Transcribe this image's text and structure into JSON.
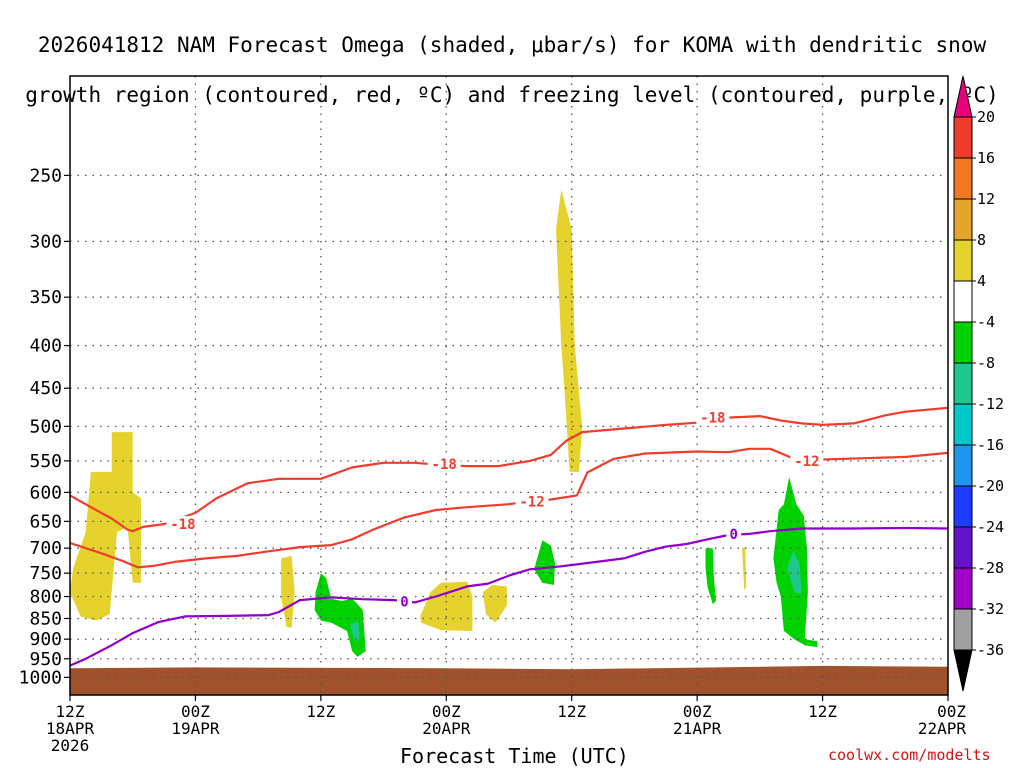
{
  "title": {
    "line1": "2026041812 NAM Forecast Omega (shaded, μbar/s) for KOMA with dendritic snow",
    "line2": "growth region (contoured, red, ºC) and freezing level (contoured, purple, ºC)"
  },
  "xlabel": "Forecast Time (UTC)",
  "credit": "coolwx.com/modelts",
  "chart_data": {
    "type": "time-height cross-section",
    "station": "KOMA",
    "run": "2026041812",
    "model": "NAM",
    "x_range_hours": [
      0,
      84
    ],
    "y_range_hpa": [
      1050,
      190
    ],
    "y_scale": "log-pressure",
    "y_ticks": [
      250,
      300,
      350,
      400,
      450,
      500,
      550,
      600,
      650,
      700,
      750,
      800,
      850,
      900,
      950,
      1000
    ],
    "x_ticks": [
      {
        "hour": 0,
        "line1": "12Z",
        "line2": "18APR",
        "line3": "2026"
      },
      {
        "hour": 12,
        "line1": "00Z",
        "line2": "19APR",
        "line3": ""
      },
      {
        "hour": 24,
        "line1": "12Z",
        "line2": "",
        "line3": ""
      },
      {
        "hour": 36,
        "line1": "00Z",
        "line2": "20APR",
        "line3": ""
      },
      {
        "hour": 48,
        "line1": "12Z",
        "line2": "",
        "line3": ""
      },
      {
        "hour": 60,
        "line1": "00Z",
        "line2": "21APR",
        "line3": ""
      },
      {
        "hour": 72,
        "line1": "12Z",
        "line2": "",
        "line3": ""
      },
      {
        "hour": 84,
        "line1": "00Z",
        "line2": "22APR",
        "line3": ""
      }
    ],
    "colorbar": {
      "units": "μbar/s",
      "bins": [
        {
          "from": 20,
          "to": 24,
          "color": "#e6007a"
        },
        {
          "from": 16,
          "to": 20,
          "color": "#f03c2d"
        },
        {
          "from": 12,
          "to": 16,
          "color": "#f0781e"
        },
        {
          "from": 8,
          "to": 12,
          "color": "#e6a42d"
        },
        {
          "from": 4,
          "to": 8,
          "color": "#e6d22d"
        },
        {
          "from": -4,
          "to": 4,
          "color": "#ffffff"
        },
        {
          "from": -8,
          "to": -4,
          "color": "#00d200"
        },
        {
          "from": -12,
          "to": -8,
          "color": "#1ec88c"
        },
        {
          "from": -16,
          "to": -12,
          "color": "#00c8c8"
        },
        {
          "from": -20,
          "to": -16,
          "color": "#1e96f0"
        },
        {
          "from": -24,
          "to": -20,
          "color": "#1e3cff"
        },
        {
          "from": -28,
          "to": -24,
          "color": "#6414c8"
        },
        {
          "from": -32,
          "to": -28,
          "color": "#a000c8"
        },
        {
          "from": -36,
          "to": -32,
          "color": "#a0a0a0"
        },
        {
          "from": -40,
          "to": -36,
          "color": "#000000"
        }
      ],
      "tick_labels": [
        "20",
        "16",
        "12",
        "8",
        "4",
        "-4",
        "-8",
        "-12",
        "-16",
        "-20",
        "-24",
        "-28",
        "-32",
        "-36"
      ]
    },
    "ground": {
      "color": "#a0522d",
      "pressure_top_hpa": [
        [
          0,
          975
        ],
        [
          12,
          973
        ],
        [
          36,
          975
        ],
        [
          48,
          978
        ],
        [
          72,
          969
        ],
        [
          84,
          971
        ]
      ]
    },
    "contours": [
      {
        "name": "-18 ºC",
        "label": "-18",
        "color": "#f03c2d",
        "points": [
          [
            0,
            605
          ],
          [
            2,
            625
          ],
          [
            4,
            645
          ],
          [
            5.5,
            665
          ],
          [
            6,
            668
          ],
          [
            7,
            660
          ],
          [
            9,
            655
          ],
          [
            12,
            635
          ],
          [
            14,
            610
          ],
          [
            17,
            585
          ],
          [
            20,
            578
          ],
          [
            24,
            578
          ],
          [
            27,
            560
          ],
          [
            30,
            553
          ],
          [
            33,
            553
          ],
          [
            36,
            557
          ],
          [
            38,
            558
          ],
          [
            41,
            558
          ],
          [
            44,
            550
          ],
          [
            46,
            541
          ],
          [
            47.5,
            520
          ],
          [
            49,
            508
          ],
          [
            53,
            503
          ],
          [
            57,
            498
          ],
          [
            60,
            495
          ],
          [
            62,
            490
          ],
          [
            63,
            488
          ],
          [
            66,
            486
          ],
          [
            68,
            492
          ],
          [
            70,
            496
          ],
          [
            72,
            498
          ],
          [
            75,
            496
          ],
          [
            78,
            485
          ],
          [
            80,
            480
          ],
          [
            84,
            475
          ]
        ],
        "label_positions": [
          [
            10.8,
            655
          ],
          [
            35.8,
            555
          ],
          [
            61.5,
            488
          ]
        ]
      },
      {
        "name": "-12 ºC",
        "label": "-12",
        "color": "#f03c2d",
        "points": [
          [
            0,
            690
          ],
          [
            3,
            710
          ],
          [
            5,
            725
          ],
          [
            6.5,
            738
          ],
          [
            8,
            735
          ],
          [
            10,
            727
          ],
          [
            13,
            720
          ],
          [
            16,
            715
          ],
          [
            19,
            706
          ],
          [
            22,
            698
          ],
          [
            25,
            694
          ],
          [
            27,
            683
          ],
          [
            29,
            665
          ],
          [
            32,
            643
          ],
          [
            35,
            630
          ],
          [
            38,
            625
          ],
          [
            42,
            620
          ],
          [
            44,
            615
          ],
          [
            46,
            612
          ],
          [
            48.5,
            605
          ],
          [
            49.5,
            568
          ],
          [
            52,
            547
          ],
          [
            55,
            539
          ],
          [
            60,
            536
          ],
          [
            63,
            537
          ],
          [
            65,
            532
          ],
          [
            67,
            532
          ],
          [
            69,
            545
          ],
          [
            72,
            548
          ],
          [
            76,
            546
          ],
          [
            80,
            544
          ],
          [
            84,
            538
          ]
        ],
        "label_positions": [
          [
            44.2,
            615
          ],
          [
            70.5,
            550
          ]
        ]
      },
      {
        "name": "0 ºC",
        "label": "0",
        "color": "#9000c8",
        "points": [
          [
            0,
            968
          ],
          [
            1.5,
            950
          ],
          [
            4,
            915
          ],
          [
            6,
            885
          ],
          [
            8.5,
            858
          ],
          [
            11,
            845
          ],
          [
            15,
            844
          ],
          [
            19,
            842
          ],
          [
            20,
            835
          ],
          [
            22,
            808
          ],
          [
            25,
            802
          ],
          [
            28,
            806
          ],
          [
            31,
            808
          ],
          [
            33,
            813
          ],
          [
            35,
            800
          ],
          [
            38,
            778
          ],
          [
            40,
            772
          ],
          [
            42,
            755
          ],
          [
            44,
            742
          ],
          [
            47,
            736
          ],
          [
            50,
            728
          ],
          [
            53,
            720
          ],
          [
            55,
            707
          ],
          [
            57,
            697
          ],
          [
            59,
            692
          ],
          [
            61,
            683
          ],
          [
            63,
            675
          ],
          [
            65,
            673
          ],
          [
            67,
            668
          ],
          [
            70,
            663
          ],
          [
            75,
            663
          ],
          [
            80,
            662
          ],
          [
            84,
            663
          ]
        ],
        "label_positions": [
          [
            32,
            811
          ],
          [
            63.5,
            673
          ]
        ]
      }
    ],
    "shaded_regions": [
      {
        "value_bin": "4 to 8",
        "color": "#e6d22d",
        "name": "yellow-ascent-1",
        "polygon": [
          [
            0,
            790
          ],
          [
            0.3,
            740
          ],
          [
            1.5,
            670
          ],
          [
            2,
            567
          ],
          [
            4,
            567
          ],
          [
            4,
            508
          ],
          [
            6,
            508
          ],
          [
            6,
            600
          ],
          [
            6.8,
            610
          ],
          [
            6.8,
            770
          ],
          [
            6,
            770
          ],
          [
            5.5,
            660
          ],
          [
            4.5,
            670
          ],
          [
            3.8,
            840
          ],
          [
            2.5,
            855
          ],
          [
            1,
            845
          ]
        ]
      },
      {
        "value_bin": "4 to 8",
        "color": "#e6d22d",
        "name": "yellow-ascent-2",
        "polygon": [
          [
            20.2,
            720
          ],
          [
            21.2,
            715
          ],
          [
            21.5,
            790
          ],
          [
            21.2,
            872
          ],
          [
            20.7,
            870
          ],
          [
            20.2,
            800
          ]
        ]
      },
      {
        "value_bin": "4 to 8",
        "color": "#e6d22d",
        "name": "yellow-ascent-3",
        "polygon": [
          [
            33.5,
            845
          ],
          [
            34.5,
            790
          ],
          [
            35.5,
            770
          ],
          [
            38,
            768
          ],
          [
            38.5,
            800
          ],
          [
            38.5,
            880
          ],
          [
            35.5,
            878
          ],
          [
            33.6,
            860
          ]
        ]
      },
      {
        "value_bin": "4 to 8",
        "color": "#e6d22d",
        "name": "yellow-ascent-4",
        "polygon": [
          [
            39.5,
            790
          ],
          [
            40.4,
            775
          ],
          [
            41.8,
            778
          ],
          [
            41.8,
            820
          ],
          [
            40.7,
            860
          ],
          [
            39.8,
            840
          ]
        ]
      },
      {
        "value_bin": "4 to 8",
        "color": "#e6d22d",
        "name": "yellow-ascent-5",
        "polygon": [
          [
            46.5,
            290
          ],
          [
            47,
            260
          ],
          [
            48,
            290
          ],
          [
            48.3,
            400
          ],
          [
            49,
            500
          ],
          [
            48.7,
            567
          ],
          [
            47.8,
            567
          ],
          [
            47.3,
            450
          ],
          [
            47,
            400
          ]
        ]
      },
      {
        "value_bin": "4 to 8",
        "color": "#e6d22d",
        "name": "yellow-ascent-6",
        "polygon": [
          [
            64.3,
            700
          ],
          [
            64.6,
            698
          ],
          [
            64.7,
            780
          ],
          [
            64.5,
            785
          ]
        ]
      },
      {
        "value_bin": "-8 to -4",
        "color": "#00d200",
        "name": "green-descent-1",
        "polygon": [
          [
            23.5,
            790
          ],
          [
            24,
            750
          ],
          [
            24.5,
            760
          ],
          [
            25,
            805
          ],
          [
            26,
            810
          ],
          [
            27,
            805
          ],
          [
            28,
            830
          ],
          [
            28.3,
            930
          ],
          [
            27.5,
            945
          ],
          [
            27,
            930
          ],
          [
            26.5,
            880
          ],
          [
            25,
            860
          ],
          [
            24,
            855
          ],
          [
            23.4,
            830
          ]
        ]
      },
      {
        "value_bin": "-8 to -4",
        "color": "#00d200",
        "name": "green-descent-2",
        "polygon": [
          [
            44.4,
            742
          ],
          [
            45.2,
            685
          ],
          [
            46,
            695
          ],
          [
            46.4,
            730
          ],
          [
            46.3,
            775
          ],
          [
            45.2,
            770
          ]
        ]
      },
      {
        "value_bin": "-8 to -4",
        "color": "#00d200",
        "name": "green-descent-3",
        "polygon": [
          [
            60.8,
            700
          ],
          [
            61.5,
            700
          ],
          [
            61.6,
            760
          ],
          [
            61.8,
            810
          ],
          [
            61.5,
            817
          ],
          [
            61,
            780
          ],
          [
            60.8,
            740
          ]
        ]
      },
      {
        "value_bin": "-8 to -4",
        "color": "#00d200",
        "name": "green-descent-4",
        "polygon": [
          [
            67.3,
            720
          ],
          [
            67.8,
            630
          ],
          [
            68.3,
            620
          ],
          [
            68.8,
            575
          ],
          [
            69.5,
            620
          ],
          [
            70.2,
            640
          ],
          [
            70.5,
            700
          ],
          [
            70.6,
            790
          ],
          [
            70.3,
            900
          ],
          [
            71.5,
            905
          ],
          [
            71.5,
            920
          ],
          [
            70.3,
            915
          ],
          [
            69.3,
            900
          ],
          [
            68.3,
            880
          ],
          [
            68,
            800
          ],
          [
            67.6,
            770
          ]
        ]
      },
      {
        "value_bin": "-12 to -8",
        "color": "#1ec88c",
        "name": "teal-descent-1",
        "polygon": [
          [
            26.8,
            862
          ],
          [
            27.6,
            858
          ],
          [
            27.7,
            900
          ],
          [
            27.2,
            905
          ]
        ]
      },
      {
        "value_bin": "-12 to -8",
        "color": "#1ec88c",
        "name": "teal-descent-2",
        "polygon": [
          [
            68.6,
            740
          ],
          [
            69.2,
            705
          ],
          [
            69.8,
            730
          ],
          [
            70,
            795
          ],
          [
            69.3,
            790
          ]
        ]
      }
    ]
  }
}
